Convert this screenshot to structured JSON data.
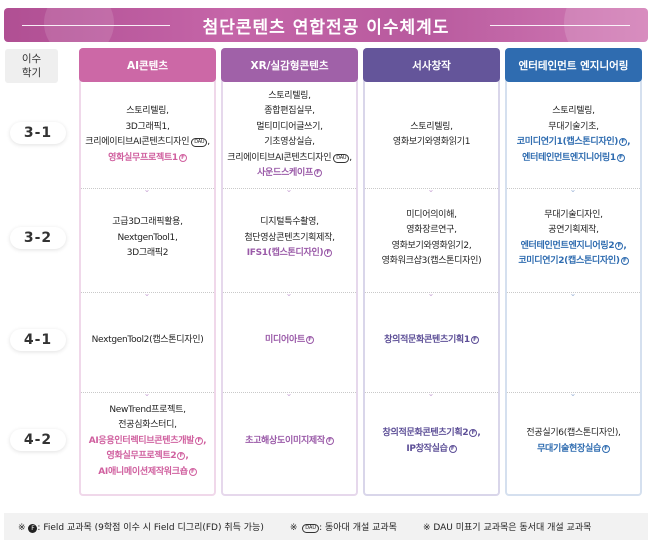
{
  "title": "첨단콘텐츠 연합전공 이수체계도",
  "semester_header": [
    "이수",
    "학기"
  ],
  "semesters": [
    "3-1",
    "3-2",
    "4-1",
    "4-2"
  ],
  "field_mark": "F",
  "dau_mark": "DAU",
  "colors": {
    "banner": "#c060a4",
    "ai": "#cc68a6",
    "xr": "#a061a8",
    "narrative": "#64559a",
    "ent": "#2f6cb0"
  },
  "columns": [
    {
      "title": "AI콘텐츠",
      "color": "#cc68a6",
      "accent": "#d0609f",
      "border": "#f0d8ea",
      "cells": [
        [
          {
            "t": "스토리텔링",
            "sep": ","
          },
          {
            "t": "3D그래픽1",
            "sep": ","
          },
          {
            "t": "크리에이티브AI콘텐츠디자인",
            "dau": true,
            "sep": ","
          },
          {
            "t": "영화실무프로젝트1",
            "hl": true,
            "f": true
          }
        ],
        [
          {
            "t": "고급3D그래픽활용",
            "sep": ","
          },
          {
            "t": "NextgenTool1",
            "sep": ","
          },
          {
            "t": "3D그래픽2"
          }
        ],
        [
          {
            "t": "NextgenTool2(캡스톤디자인)"
          }
        ],
        [
          {
            "t": "NewTrend프로젝트",
            "sep": ","
          },
          {
            "t": "전공심화스터디",
            "sep": ","
          },
          {
            "t": "AI응용인터렉티브콘텐츠개발",
            "hl": true,
            "f": true,
            "sep": ","
          },
          {
            "t": "영화실무프로젝트2",
            "hl": true,
            "f": true,
            "sep": ","
          },
          {
            "t": "AI애니메이션제작워크숍",
            "hl": true,
            "f": true
          }
        ]
      ]
    },
    {
      "title": "XR/실감형콘텐츠",
      "color": "#a061a8",
      "accent": "#9a5aa8",
      "border": "#e6d8ec",
      "cells": [
        [
          {
            "t": "스토리텔링",
            "sep": ","
          },
          {
            "t": "종합편집실무",
            "sep": ","
          },
          {
            "t": "멀티미디어글쓰기",
            "sep": ","
          },
          {
            "t": "기초영상실습",
            "sep": ","
          },
          {
            "t": "크리에이티브AI콘텐츠디자인",
            "dau": true,
            "sep": ","
          },
          {
            "t": "사운드스케이프",
            "hl": true,
            "f": true
          }
        ],
        [
          {
            "t": "디지털특수촬영",
            "sep": ","
          },
          {
            "t": "첨단영상콘텐츠기획제작",
            "sep": ","
          },
          {
            "t": "IFS1(캡스톤디자인)",
            "hl": true,
            "f": true
          }
        ],
        [
          {
            "t": "미디어아트",
            "hl": true,
            "f": true
          }
        ],
        [
          {
            "t": "초고해상도이미지제작",
            "hl": true,
            "f": true
          }
        ]
      ]
    },
    {
      "title": "서사창작",
      "color": "#64559a",
      "accent": "#5d4f97",
      "border": "#d9d6ea",
      "cells": [
        [
          {
            "t": "스토리텔링",
            "sep": ","
          },
          {
            "t": "영화보기와영화읽기1"
          }
        ],
        [
          {
            "t": "미디어의이해",
            "sep": ","
          },
          {
            "t": "영화장르연구",
            "sep": ","
          },
          {
            "t": "영화보기와영화읽기2",
            "sep": ","
          },
          {
            "t": "영화워크샵3(캡스톤디자인)"
          }
        ],
        [
          {
            "t": "창의적문화콘텐츠기획1",
            "hl": true,
            "f": true
          }
        ],
        [
          {
            "t": "창의적문화콘텐츠기획2",
            "hl": true,
            "f": true,
            "sep": ","
          },
          {
            "t": "IP창작실습",
            "hl": true,
            "f": true
          }
        ]
      ]
    },
    {
      "title": "엔터테인먼트 엔지니어링",
      "color": "#2f6cb0",
      "accent": "#2f6cb0",
      "border": "#d5e0ef",
      "cells": [
        [
          {
            "t": "스토리텔링",
            "sep": ","
          },
          {
            "t": "무대기술기초",
            "sep": ","
          },
          {
            "t": "코미디연기1(캡스톤디자인)",
            "hl": true,
            "f": true,
            "sep": ","
          },
          {
            "t": "엔터테인먼트엔지니어링1",
            "hl": true,
            "f": true
          }
        ],
        [
          {
            "t": "무대기술디자인",
            "sep": ","
          },
          {
            "t": "공연기획제작",
            "sep": ","
          },
          {
            "t": "엔터테인먼트엔지니어링2",
            "hl": true,
            "f": true,
            "sep": ","
          },
          {
            "t": "코미디연기2(캡스톤디자인)",
            "hl": true,
            "f": true
          }
        ],
        [],
        [
          {
            "t": "전공실기6(캡스톤디자인)",
            "sep": ","
          },
          {
            "t": "무대기술현장실습",
            "hl": true,
            "f": true
          }
        ]
      ]
    }
  ],
  "footer": {
    "note1": ": Field 교과목 (9학점 이수 시 Field 디그리(FD) 취득 가능)",
    "note2": ": 동아대 개설 교과목",
    "note3": "DAU 미표기 교과목은  동서대 개설 교과목",
    "bullet": "※"
  }
}
